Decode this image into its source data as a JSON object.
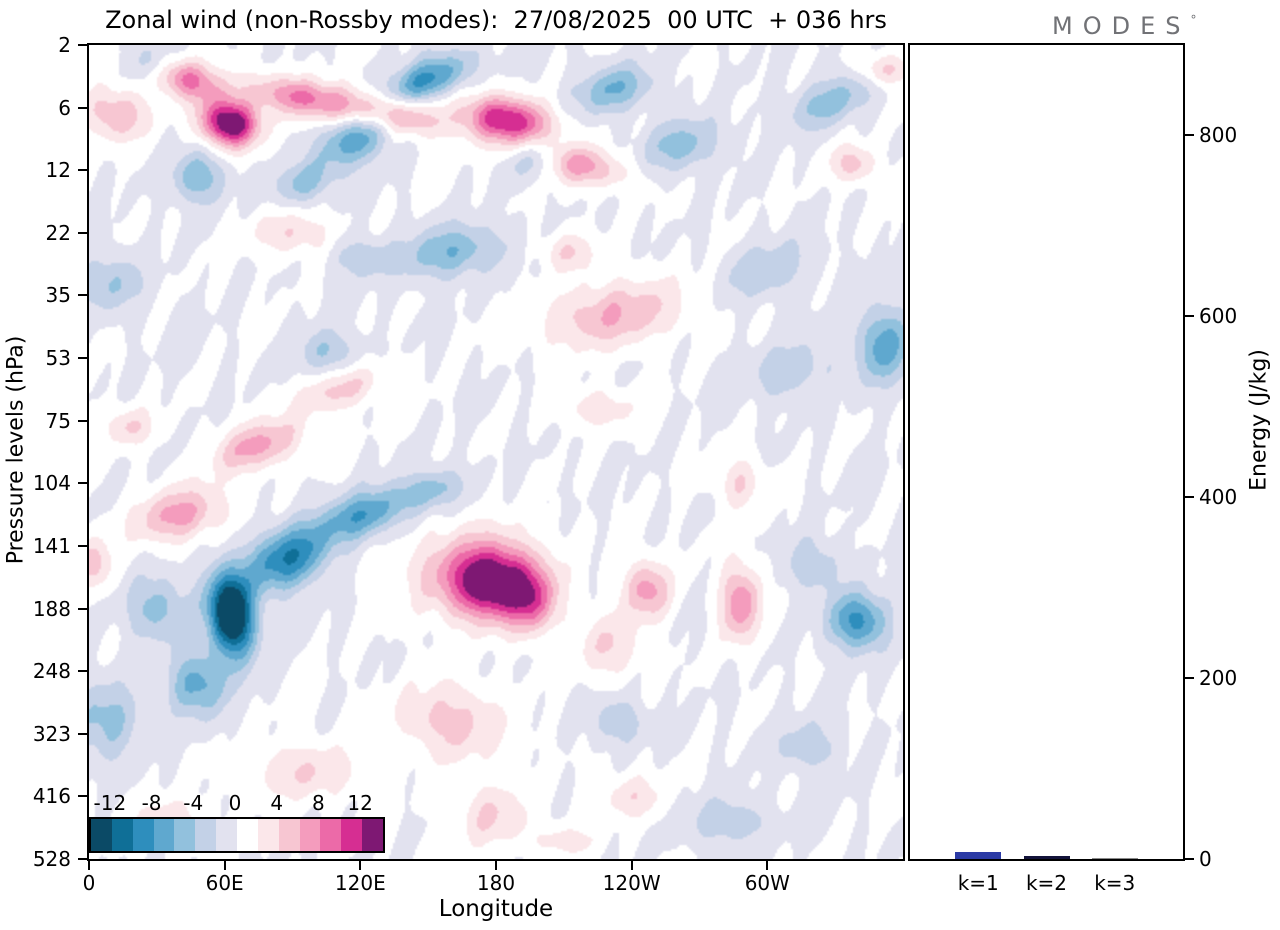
{
  "title": "Zonal wind (non-Rossby modes):  27/08/2025  00 UTC  + 036 hrs",
  "logo": {
    "text": "MODES",
    "degree": "°"
  },
  "chart_data": [
    {
      "type": "heatmap",
      "title": "Zonal wind (non-Rossby modes): 27/08/2025 00 UTC + 036 hrs",
      "xlabel": "Longitude",
      "ylabel": "Pressure levels (hPa)",
      "x_range_deg": [
        0,
        360
      ],
      "x_ticks": [
        {
          "value": 0,
          "label": "0"
        },
        {
          "value": 60,
          "label": "60E"
        },
        {
          "value": 120,
          "label": "120E"
        },
        {
          "value": 180,
          "label": "180"
        },
        {
          "value": 240,
          "label": "120W"
        },
        {
          "value": 300,
          "label": "60W"
        }
      ],
      "y_ticks": [
        "2",
        "6",
        "12",
        "22",
        "35",
        "53",
        "75",
        "104",
        "141",
        "188",
        "248",
        "323",
        "416",
        "528"
      ],
      "contour_step": 2,
      "value_range": [
        -14,
        14
      ],
      "colorbar": {
        "labels": [
          "-12",
          "-8",
          "-4",
          "0",
          "4",
          "8",
          "12"
        ],
        "levels": [
          -14,
          -12,
          -10,
          -8,
          -6,
          -4,
          -2,
          0,
          2,
          4,
          6,
          8,
          10,
          12,
          14
        ],
        "colors": [
          "#0b4a66",
          "#0f6f97",
          "#2e8ebd",
          "#5fa8cf",
          "#92c1dd",
          "#c3d1e7",
          "#e2e2ef",
          "#ffffff",
          "#fbe7ea",
          "#f7c6d2",
          "#f49cbd",
          "#ec6aa8",
          "#d62e92",
          "#7e1873"
        ]
      },
      "bump_format": [
        "lon_deg",
        "level_index",
        "amplitude",
        "sigma_lon",
        "sigma_v",
        "rotation_deg"
      ],
      "field_bumps": [
        [
          62,
          1.25,
          15,
          9,
          7,
          15
        ],
        [
          40,
          0.5,
          9,
          14,
          6,
          20
        ],
        [
          12,
          1.1,
          6,
          10,
          8,
          15
        ],
        [
          95,
          0.85,
          8,
          18,
          6,
          12
        ],
        [
          135,
          1.1,
          7,
          16,
          6,
          12
        ],
        [
          185,
          1.2,
          12,
          14,
          7,
          10
        ],
        [
          215,
          1.9,
          7,
          16,
          6,
          12
        ],
        [
          28,
          0.3,
          -7,
          8,
          6,
          15
        ],
        [
          48,
          2.1,
          -6,
          8,
          8,
          0
        ],
        [
          118,
          1.5,
          -8,
          12,
          7,
          -30
        ],
        [
          150,
          0.55,
          -9,
          14,
          6,
          -25
        ],
        [
          95,
          2.2,
          -5,
          10,
          6,
          -20
        ],
        [
          198,
          1.8,
          -6,
          8,
          6,
          -20
        ],
        [
          232,
          0.7,
          -6,
          12,
          7,
          -15
        ],
        [
          262,
          1.6,
          -5,
          12,
          8,
          -15
        ],
        [
          328,
          0.9,
          -5,
          14,
          7,
          -25
        ],
        [
          352,
          0.4,
          5,
          8,
          5,
          0
        ],
        [
          338,
          1.9,
          5,
          7,
          6,
          0
        ],
        [
          90,
          3.0,
          4,
          12,
          7,
          0
        ],
        [
          160,
          3.3,
          -6,
          16,
          8,
          -10
        ],
        [
          120,
          3.4,
          -4,
          8,
          6,
          0
        ],
        [
          232,
          4.3,
          6,
          22,
          10,
          -10
        ],
        [
          212,
          3.3,
          4,
          8,
          6,
          0
        ],
        [
          352,
          4.8,
          -7,
          9,
          12,
          0
        ],
        [
          300,
          3.6,
          -4,
          14,
          8,
          -20
        ],
        [
          10,
          3.8,
          -4,
          10,
          9,
          0
        ],
        [
          105,
          4.9,
          -4,
          10,
          7,
          0
        ],
        [
          40,
          7.5,
          7,
          14,
          8,
          -15
        ],
        [
          75,
          6.4,
          7,
          14,
          7,
          -20
        ],
        [
          112,
          5.5,
          5,
          14,
          6,
          -20
        ],
        [
          18,
          6.1,
          4,
          8,
          6,
          0
        ],
        [
          2,
          8.3,
          5,
          6,
          8,
          0
        ],
        [
          63,
          9.1,
          -17,
          7,
          13,
          -8
        ],
        [
          88,
          8.2,
          -10,
          14,
          9,
          -28
        ],
        [
          122,
          7.5,
          -8,
          14,
          7,
          -20
        ],
        [
          48,
          10.2,
          -7,
          9,
          10,
          0
        ],
        [
          30,
          9.0,
          -5,
          10,
          10,
          0
        ],
        [
          152,
          7.1,
          -5,
          10,
          6,
          -15
        ],
        [
          178,
          8.6,
          12,
          13,
          11,
          0
        ],
        [
          196,
          8.9,
          7,
          8,
          10,
          0
        ],
        [
          170,
          8.4,
          5,
          22,
          14,
          0
        ],
        [
          160,
          10.8,
          5,
          16,
          12,
          10
        ],
        [
          178,
          12.3,
          4,
          12,
          10,
          0
        ],
        [
          230,
          9.6,
          4,
          10,
          10,
          0
        ],
        [
          247,
          8.7,
          7,
          7,
          9,
          0
        ],
        [
          288,
          8.9,
          8,
          6,
          12,
          0
        ],
        [
          288,
          7.0,
          4,
          7,
          8,
          0
        ],
        [
          340,
          9.2,
          -9,
          9,
          9,
          -10
        ],
        [
          320,
          8.3,
          -4,
          8,
          8,
          0
        ],
        [
          8,
          10.8,
          -5,
          10,
          12,
          0
        ],
        [
          95,
          11.6,
          4,
          18,
          9,
          0
        ],
        [
          35,
          12.4,
          3.5,
          12,
          7,
          0
        ],
        [
          234,
          10.8,
          -4,
          8,
          7,
          0
        ],
        [
          283,
          12.4,
          -4,
          12,
          7,
          0
        ],
        [
          240,
          12.0,
          3.5,
          10,
          7,
          0
        ],
        [
          210,
          12.7,
          3,
          10,
          5,
          0
        ],
        [
          318,
          11.2,
          -3.5,
          10,
          8,
          0
        ],
        [
          310,
          5.2,
          -4,
          13,
          8,
          -20
        ],
        [
          225,
          5.8,
          3.5,
          12,
          6,
          0
        ]
      ],
      "texture": {
        "a1": 0.6,
        "kx1": 0.2,
        "ky1": 2.6,
        "kx2": 0.083,
        "ky2": 1.4,
        "a2": 0.45,
        "kx3": 0.41,
        "ky3": 4.0,
        "kx4": 0.059,
        "ky4": 2.2
      }
    },
    {
      "type": "bar",
      "categories": [
        "k=1",
        "k=2",
        "k=3"
      ],
      "values": [
        8,
        3,
        1
      ],
      "bar_colors": [
        "#2b3aa5",
        "#13133a",
        "#8a8a8a"
      ],
      "ylabel": "Energy (J/kg)",
      "y_ticks": [
        0,
        200,
        400,
        600,
        800
      ],
      "ylim": [
        0,
        900
      ]
    }
  ]
}
